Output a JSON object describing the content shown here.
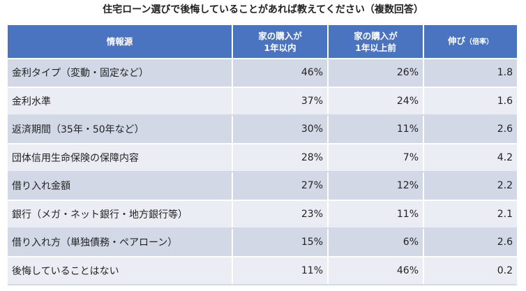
{
  "chart_data": {
    "type": "table",
    "title": "住宅ローン選びで後悔していることがあれば教えてください（複数回答）",
    "headers": {
      "source": "情報源",
      "within1_line1": "家の購入が",
      "within1_line2": "1年以内",
      "before1_line1": "家の購入が",
      "before1_line2": "1年以上前",
      "growth": "伸び",
      "growth_sub": "（倍率）"
    },
    "rows": [
      {
        "label": "金利タイプ（変動・固定など）",
        "within1": "46%",
        "before1": "26%",
        "ratio": "1.8"
      },
      {
        "label": "金利水準",
        "within1": "37%",
        "before1": "24%",
        "ratio": "1.6"
      },
      {
        "label": "返済期間（35年・50年など）",
        "within1": "30%",
        "before1": "11%",
        "ratio": "2.6"
      },
      {
        "label": "団体信用生命保険の保障内容",
        "within1": "28%",
        "before1": "7%",
        "ratio": "4.2"
      },
      {
        "label": "借り入れ金額",
        "within1": "27%",
        "before1": "12%",
        "ratio": "2.2"
      },
      {
        "label": "銀行（メガ・ネット銀行・地方銀行等）",
        "within1": "23%",
        "before1": "11%",
        "ratio": "2.1"
      },
      {
        "label": "借り入れ方（単独債務・ペアローン）",
        "within1": "15%",
        "before1": "6%",
        "ratio": "2.6"
      },
      {
        "label": "後悔していることはない",
        "within1": "11%",
        "before1": "46%",
        "ratio": "0.2"
      }
    ]
  },
  "colors": {
    "header_bg": "#4a73c0",
    "row_dark": "#d3d8e6",
    "row_light": "#ebedf4"
  }
}
